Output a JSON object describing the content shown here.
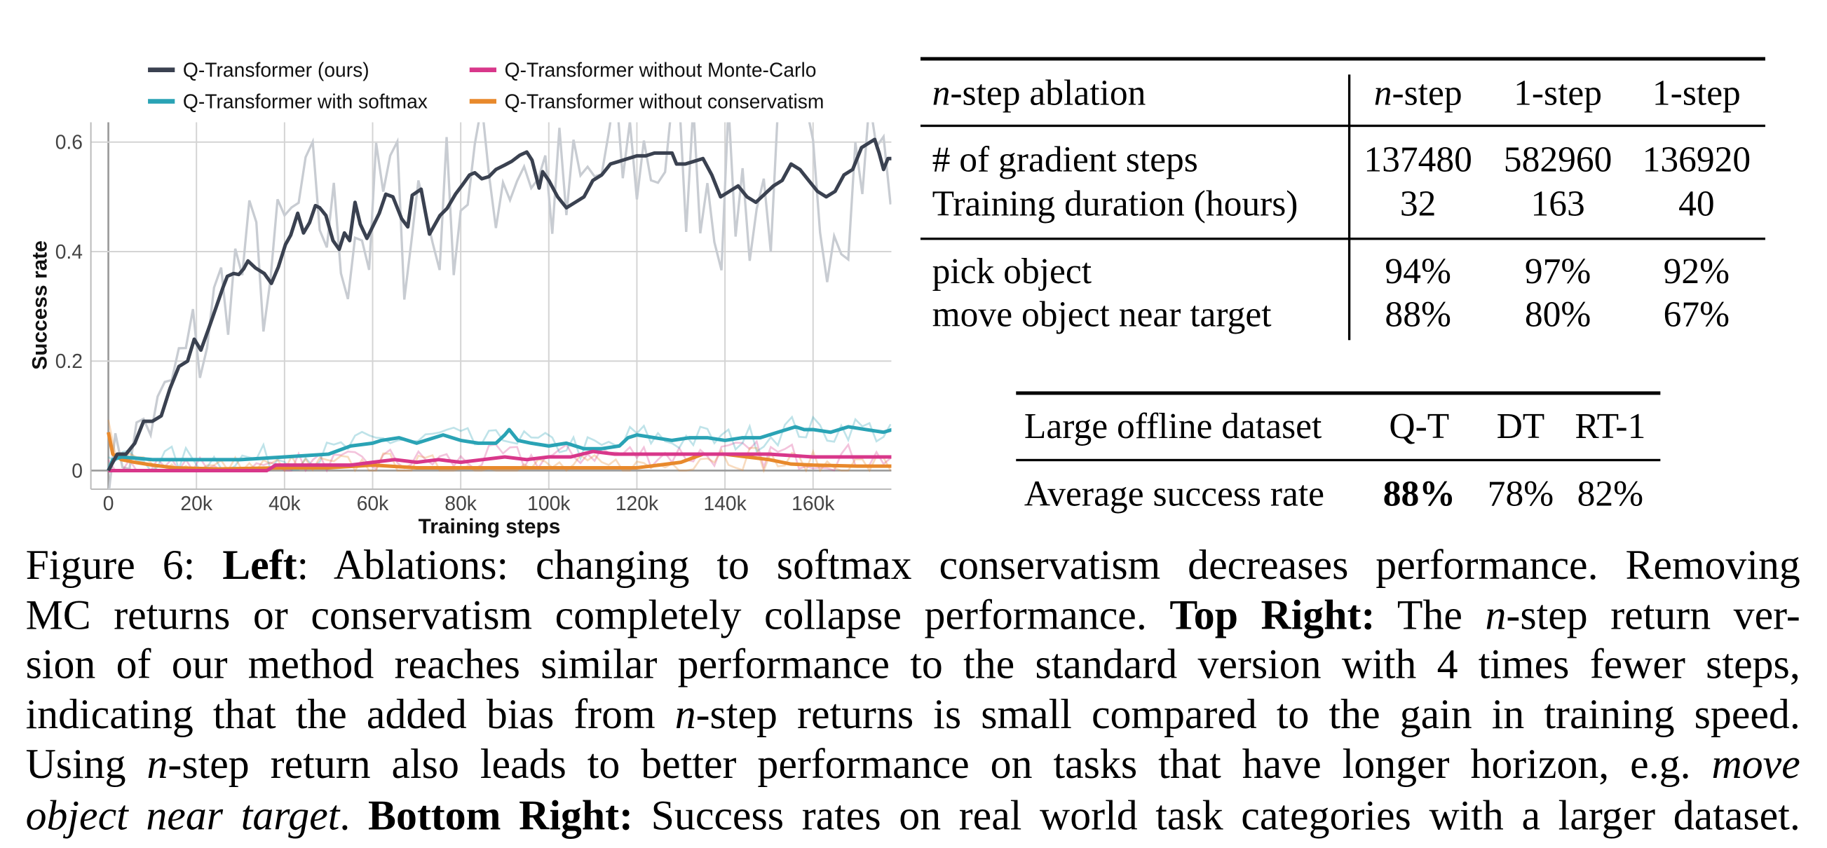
{
  "chart_data": {
    "type": "line",
    "xlabel": "Training steps",
    "ylabel": "Success rate",
    "xlim": [
      -4,
      178
    ],
    "ylim": [
      -0.035,
      0.64
    ],
    "x_unit": "thousand steps",
    "xticks": [
      0,
      20,
      40,
      60,
      80,
      100,
      120,
      140,
      160
    ],
    "xtick_labels": [
      "0",
      "20k",
      "40k",
      "60k",
      "80k",
      "100k",
      "120k",
      "140k",
      "160k"
    ],
    "yticks": [
      0,
      0.2,
      0.4,
      0.6
    ],
    "ytick_labels": [
      "0",
      "0.2",
      "0.4",
      "0.6"
    ],
    "grid": true,
    "legend_placement": "top",
    "raw_series_color": "#c8ccd2",
    "series": [
      {
        "name": "Q-Transformer (ours)",
        "color": "#3a4150",
        "points": [
          [
            0,
            0
          ],
          [
            2,
            0.03
          ],
          [
            4,
            0.03
          ],
          [
            6,
            0.05
          ],
          [
            8,
            0.09
          ],
          [
            10,
            0.09
          ],
          [
            12,
            0.1
          ],
          [
            14,
            0.15
          ],
          [
            16,
            0.19
          ],
          [
            18,
            0.2
          ],
          [
            19.5,
            0.24
          ],
          [
            21,
            0.22
          ],
          [
            22.8,
            0.26
          ],
          [
            26,
            0.334
          ],
          [
            27,
            0.355
          ],
          [
            28.4,
            0.36
          ],
          [
            29.6,
            0.358
          ],
          [
            30.7,
            0.368
          ],
          [
            31.7,
            0.383
          ],
          [
            33.4,
            0.37
          ],
          [
            35.4,
            0.36
          ],
          [
            37,
            0.342
          ],
          [
            38.6,
            0.372
          ],
          [
            40.2,
            0.413
          ],
          [
            41.4,
            0.43
          ],
          [
            43,
            0.47
          ],
          [
            44.3,
            0.434
          ],
          [
            45.7,
            0.453
          ],
          [
            47,
            0.484
          ],
          [
            48,
            0.48
          ],
          [
            49.4,
            0.466
          ],
          [
            51,
            0.42
          ],
          [
            52.4,
            0.404
          ],
          [
            53.6,
            0.434
          ],
          [
            54.8,
            0.42
          ],
          [
            56,
            0.49
          ],
          [
            57.2,
            0.45
          ],
          [
            58.7,
            0.424
          ],
          [
            61.5,
            0.47
          ],
          [
            63,
            0.505
          ],
          [
            64.6,
            0.5
          ],
          [
            66.6,
            0.46
          ],
          [
            68,
            0.445
          ],
          [
            69,
            0.503
          ],
          [
            71,
            0.514
          ],
          [
            72.9,
            0.432
          ],
          [
            75.3,
            0.466
          ],
          [
            76.9,
            0.479
          ],
          [
            78.8,
            0.505
          ],
          [
            80.4,
            0.522
          ],
          [
            82,
            0.54
          ],
          [
            83.2,
            0.544
          ],
          [
            84.8,
            0.533
          ],
          [
            86.4,
            0.537
          ],
          [
            88,
            0.55
          ],
          [
            90,
            0.558
          ],
          [
            91.6,
            0.565
          ],
          [
            93.4,
            0.576
          ],
          [
            95,
            0.582
          ],
          [
            96.2,
            0.567
          ],
          [
            97.8,
            0.516
          ],
          [
            98.6,
            0.546
          ],
          [
            100,
            0.53
          ],
          [
            102,
            0.5
          ],
          [
            104,
            0.48
          ],
          [
            106,
            0.49
          ],
          [
            108,
            0.5
          ],
          [
            110,
            0.53
          ],
          [
            112,
            0.54
          ],
          [
            114,
            0.56
          ],
          [
            116,
            0.565
          ],
          [
            118,
            0.57
          ],
          [
            120,
            0.575
          ],
          [
            122,
            0.575
          ],
          [
            124,
            0.58
          ],
          [
            126,
            0.58
          ],
          [
            128,
            0.58
          ],
          [
            129,
            0.56
          ],
          [
            131,
            0.56
          ],
          [
            133,
            0.565
          ],
          [
            135,
            0.57
          ],
          [
            137,
            0.54
          ],
          [
            139,
            0.5
          ],
          [
            141,
            0.51
          ],
          [
            143,
            0.52
          ],
          [
            145,
            0.5
          ],
          [
            147,
            0.49
          ],
          [
            149,
            0.505
          ],
          [
            151,
            0.52
          ],
          [
            153,
            0.53
          ],
          [
            155,
            0.56
          ],
          [
            157,
            0.55
          ],
          [
            159,
            0.53
          ],
          [
            161,
            0.51
          ],
          [
            163,
            0.5
          ],
          [
            165,
            0.51
          ],
          [
            167,
            0.54
          ],
          [
            169,
            0.55
          ],
          [
            171,
            0.59
          ],
          [
            173,
            0.6
          ],
          [
            174,
            0.605
          ],
          [
            175,
            0.58
          ],
          [
            176,
            0.55
          ],
          [
            177,
            0.57
          ],
          [
            178,
            0.57
          ]
        ]
      },
      {
        "name": "Q-Transformer without Monte-Carlo",
        "color": "#d8378a",
        "points": [
          [
            0,
            0
          ],
          [
            20,
            0
          ],
          [
            36,
            0
          ],
          [
            38,
            0.01
          ],
          [
            45,
            0.01
          ],
          [
            55,
            0.01
          ],
          [
            60,
            0.015
          ],
          [
            65,
            0.02
          ],
          [
            70,
            0.015
          ],
          [
            75,
            0.02
          ],
          [
            80,
            0.015
          ],
          [
            85,
            0.02
          ],
          [
            90,
            0.025
          ],
          [
            95,
            0.02
          ],
          [
            100,
            0.025
          ],
          [
            105,
            0.025
          ],
          [
            110,
            0.035
          ],
          [
            115,
            0.03
          ],
          [
            120,
            0.03
          ],
          [
            130,
            0.03
          ],
          [
            140,
            0.03
          ],
          [
            150,
            0.03
          ],
          [
            160,
            0.025
          ],
          [
            170,
            0.025
          ],
          [
            178,
            0.025
          ]
        ]
      },
      {
        "name": "Q-Transformer with softmax",
        "color": "#2aa3b5",
        "points": [
          [
            0,
            0
          ],
          [
            1,
            0.02
          ],
          [
            3,
            0.025
          ],
          [
            10,
            0.02
          ],
          [
            20,
            0.02
          ],
          [
            30,
            0.02
          ],
          [
            40,
            0.025
          ],
          [
            50,
            0.03
          ],
          [
            55,
            0.045
          ],
          [
            60,
            0.05
          ],
          [
            62,
            0.055
          ],
          [
            66,
            0.06
          ],
          [
            70,
            0.05
          ],
          [
            72,
            0.055
          ],
          [
            76,
            0.065
          ],
          [
            80,
            0.055
          ],
          [
            84,
            0.05
          ],
          [
            88,
            0.05
          ],
          [
            90,
            0.065
          ],
          [
            91,
            0.075
          ],
          [
            93,
            0.055
          ],
          [
            96,
            0.05
          ],
          [
            100,
            0.045
          ],
          [
            104,
            0.05
          ],
          [
            108,
            0.04
          ],
          [
            112,
            0.04
          ],
          [
            116,
            0.045
          ],
          [
            118,
            0.06
          ],
          [
            120,
            0.065
          ],
          [
            124,
            0.06
          ],
          [
            128,
            0.055
          ],
          [
            132,
            0.06
          ],
          [
            136,
            0.06
          ],
          [
            140,
            0.055
          ],
          [
            144,
            0.06
          ],
          [
            148,
            0.06
          ],
          [
            152,
            0.07
          ],
          [
            156,
            0.08
          ],
          [
            158,
            0.075
          ],
          [
            160,
            0.075
          ],
          [
            164,
            0.07
          ],
          [
            168,
            0.08
          ],
          [
            172,
            0.075
          ],
          [
            176,
            0.07
          ],
          [
            178,
            0.075
          ]
        ]
      },
      {
        "name": "Q-Transformer without conservatism",
        "color": "#e8892c",
        "points": [
          [
            0,
            0.07
          ],
          [
            1,
            0.03
          ],
          [
            3,
            0.02
          ],
          [
            6,
            0.015
          ],
          [
            10,
            0.01
          ],
          [
            15,
            0.005
          ],
          [
            25,
            0.003
          ],
          [
            40,
            0.005
          ],
          [
            50,
            0.005
          ],
          [
            60,
            0.01
          ],
          [
            70,
            0.005
          ],
          [
            80,
            0.005
          ],
          [
            90,
            0.005
          ],
          [
            100,
            0.005
          ],
          [
            110,
            0.005
          ],
          [
            120,
            0.005
          ],
          [
            125,
            0.01
          ],
          [
            130,
            0.015
          ],
          [
            135,
            0.03
          ],
          [
            140,
            0.03
          ],
          [
            145,
            0.025
          ],
          [
            150,
            0.02
          ],
          [
            155,
            0.012
          ],
          [
            160,
            0.01
          ],
          [
            170,
            0.008
          ],
          [
            178,
            0.008
          ]
        ]
      }
    ]
  },
  "table_nstep": {
    "header": {
      "label_var": "n",
      "label_rest": "-step ablation",
      "cols": [
        {
          "var": "n",
          "rest": "-step"
        },
        {
          "var": "",
          "rest": "1-step"
        },
        {
          "var": "",
          "rest": "1-step"
        }
      ]
    },
    "rows": [
      {
        "label": "# of gradient steps",
        "values": [
          "137480",
          "582960",
          "136920"
        ]
      },
      {
        "label": "Training duration (hours)",
        "values": [
          "32",
          "163",
          "40"
        ]
      },
      {
        "label": "pick object",
        "values": [
          "94%",
          "97%",
          "92%"
        ]
      },
      {
        "label": "move object near target",
        "values": [
          "88%",
          "80%",
          "67%"
        ]
      }
    ]
  },
  "table_large": {
    "header": {
      "label": "Large offline dataset",
      "cols": [
        "Q-T",
        "DT",
        "RT-1"
      ]
    },
    "row": {
      "label": "Average success rate",
      "values": [
        "88%",
        "78%",
        "82%"
      ],
      "bold_index": 0
    }
  },
  "caption": [
    [
      {
        "t": "Figure 6: ",
        "s": ""
      },
      {
        "t": "Left",
        "s": "b"
      },
      {
        "t": ": Ablations: changing to softmax conservatism decreases performance. Removing",
        "s": ""
      }
    ],
    [
      {
        "t": "MC returns or conservatism completely collapse performance. ",
        "s": ""
      },
      {
        "t": "Top Right:",
        "s": "b"
      },
      {
        "t": " The ",
        "s": ""
      },
      {
        "t": "n",
        "s": "i"
      },
      {
        "t": "-step return ver-",
        "s": ""
      }
    ],
    [
      {
        "t": "sion of our method reaches similar performance to the standard version with 4 times fewer steps,",
        "s": ""
      }
    ],
    [
      {
        "t": "indicating that the added bias from ",
        "s": ""
      },
      {
        "t": "n",
        "s": "i"
      },
      {
        "t": "-step returns is small compared to the gain in training speed.",
        "s": ""
      }
    ],
    [
      {
        "t": "Using ",
        "s": ""
      },
      {
        "t": "n",
        "s": "i"
      },
      {
        "t": "-step return also leads to better performance on tasks that have longer horizon, e.g. ",
        "s": ""
      },
      {
        "t": "move",
        "s": "i"
      }
    ],
    [
      {
        "t": "object near target",
        "s": "i"
      },
      {
        "t": ". ",
        "s": ""
      },
      {
        "t": "Bottom Right:",
        "s": "b"
      },
      {
        "t": " Success rates on real world task categories with a larger dataset.",
        "s": ""
      }
    ]
  ]
}
